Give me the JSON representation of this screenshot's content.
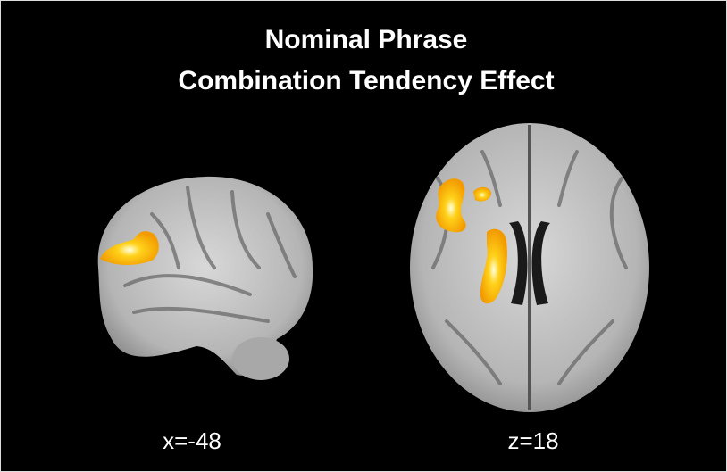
{
  "title": {
    "line1": "Nominal Phrase",
    "line2": "Combination Tendency Effect"
  },
  "panels": [
    {
      "label": "x=-48"
    },
    {
      "label": "z=18"
    }
  ]
}
